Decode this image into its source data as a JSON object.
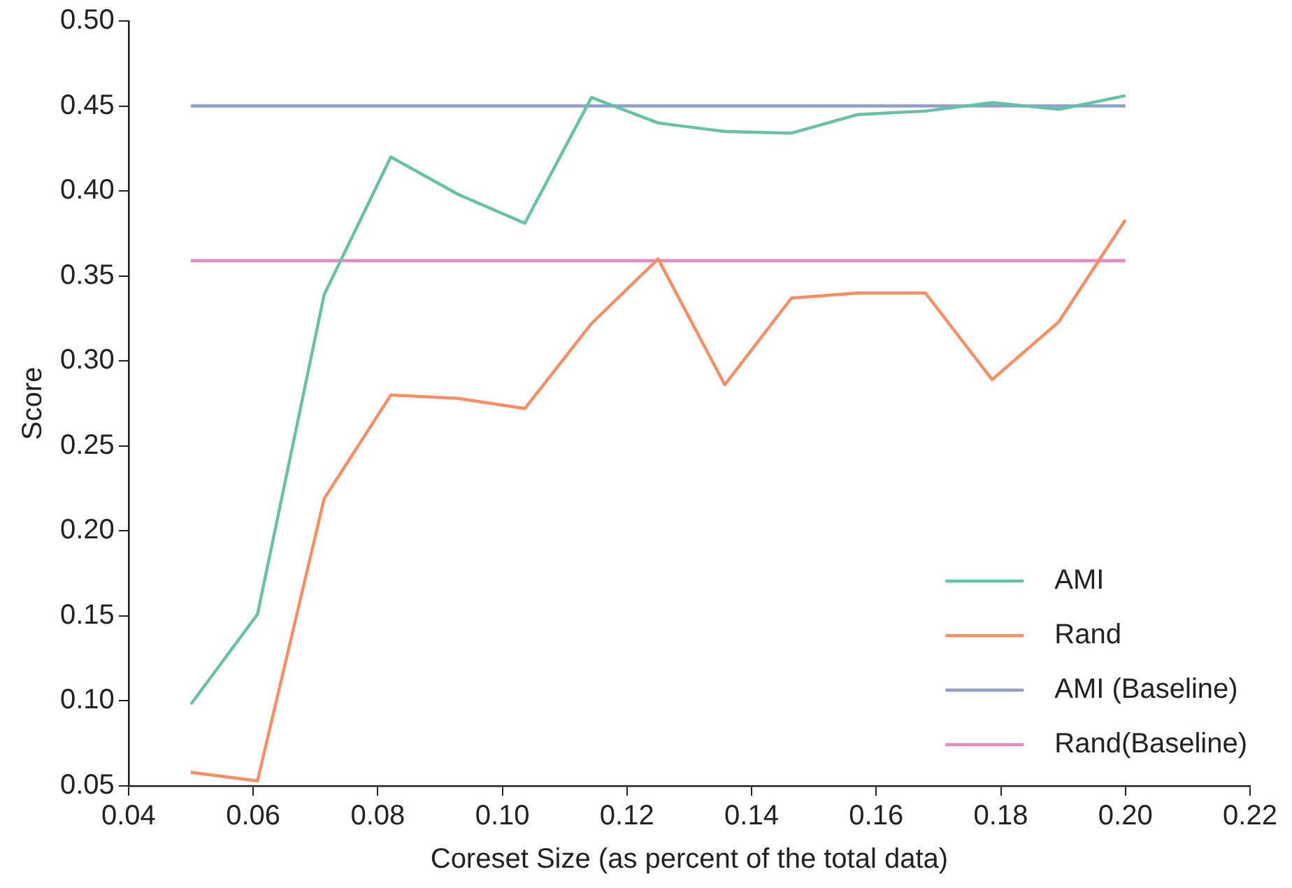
{
  "chart_data": {
    "type": "line",
    "xlabel": "Coreset Size (as percent of the total data)",
    "ylabel": "Score",
    "series": [
      {
        "name": "AMI",
        "color": "#66c2a5",
        "x": [
          0.05,
          0.0607,
          0.0714,
          0.0821,
          0.0929,
          0.1036,
          0.1143,
          0.125,
          0.1357,
          0.1464,
          0.1571,
          0.1679,
          0.1786,
          0.1893,
          0.2
        ],
        "values": [
          0.098,
          0.151,
          0.339,
          0.42,
          0.398,
          0.381,
          0.455,
          0.44,
          0.435,
          0.434,
          0.445,
          0.447,
          0.452,
          0.448,
          0.456
        ]
      },
      {
        "name": "Rand",
        "color": "#fc8d62",
        "x": [
          0.05,
          0.0607,
          0.0714,
          0.0821,
          0.0929,
          0.1036,
          0.1143,
          0.125,
          0.1357,
          0.1464,
          0.1571,
          0.1679,
          0.1786,
          0.1893,
          0.2
        ],
        "values": [
          0.058,
          0.053,
          0.219,
          0.28,
          0.278,
          0.272,
          0.322,
          0.36,
          0.286,
          0.337,
          0.34,
          0.34,
          0.289,
          0.323,
          0.383
        ]
      },
      {
        "name": "AMI (Baseline)",
        "color": "#8da0cb",
        "x": [
          0.05,
          0.2
        ],
        "values": [
          0.45,
          0.45
        ]
      },
      {
        "name": "Rand(Baseline)",
        "color": "#e78ac3",
        "x": [
          0.05,
          0.2
        ],
        "values": [
          0.359,
          0.359
        ]
      }
    ],
    "xlim": [
      0.04,
      0.22
    ],
    "ylim": [
      0.05,
      0.5
    ],
    "xticks": [
      {
        "value": 0.04,
        "label": "0.04"
      },
      {
        "value": 0.06,
        "label": "0.06"
      },
      {
        "value": 0.08,
        "label": "0.08"
      },
      {
        "value": 0.1,
        "label": "0.10"
      },
      {
        "value": 0.12,
        "label": "0.12"
      },
      {
        "value": 0.14,
        "label": "0.14"
      },
      {
        "value": 0.16,
        "label": "0.16"
      },
      {
        "value": 0.18,
        "label": "0.18"
      },
      {
        "value": 0.2,
        "label": "0.20"
      },
      {
        "value": 0.22,
        "label": "0.22"
      }
    ],
    "yticks": [
      {
        "value": 0.05,
        "label": "0.05"
      },
      {
        "value": 0.1,
        "label": "0.10"
      },
      {
        "value": 0.15,
        "label": "0.15"
      },
      {
        "value": 0.2,
        "label": "0.20"
      },
      {
        "value": 0.25,
        "label": "0.25"
      },
      {
        "value": 0.3,
        "label": "0.30"
      },
      {
        "value": 0.35,
        "label": "0.35"
      },
      {
        "value": 0.4,
        "label": "0.40"
      },
      {
        "value": 0.45,
        "label": "0.45"
      },
      {
        "value": 0.5,
        "label": "0.50"
      }
    ],
    "grid": false,
    "legend": "bottom right",
    "marker": "none",
    "line_style": "solid"
  }
}
